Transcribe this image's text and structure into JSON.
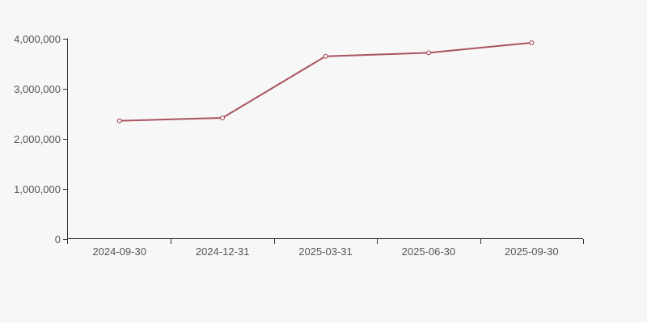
{
  "page": {
    "background_color": "#f7f7f7"
  },
  "chart_data": {
    "type": "line",
    "title": "",
    "xlabel": "",
    "ylabel": "",
    "categories": [
      "2024-09-30",
      "2024-12-31",
      "2025-03-31",
      "2025-06-30",
      "2025-09-30"
    ],
    "values": [
      2360000,
      2420000,
      3650000,
      3720000,
      3920000
    ],
    "ylim": [
      0,
      4000000
    ],
    "y_ticks": [
      0,
      1000000,
      2000000,
      3000000,
      4000000
    ],
    "y_tick_labels": [
      "0",
      "1,000,000",
      "2,000,000",
      "3,000,000",
      "4,000,000"
    ],
    "grid": false,
    "legend": false,
    "line_color": "#a9535f",
    "marker_fill": "#ffffff",
    "marker_radius": 2.4,
    "axis_color": "#333333",
    "label_color": "#555555"
  }
}
